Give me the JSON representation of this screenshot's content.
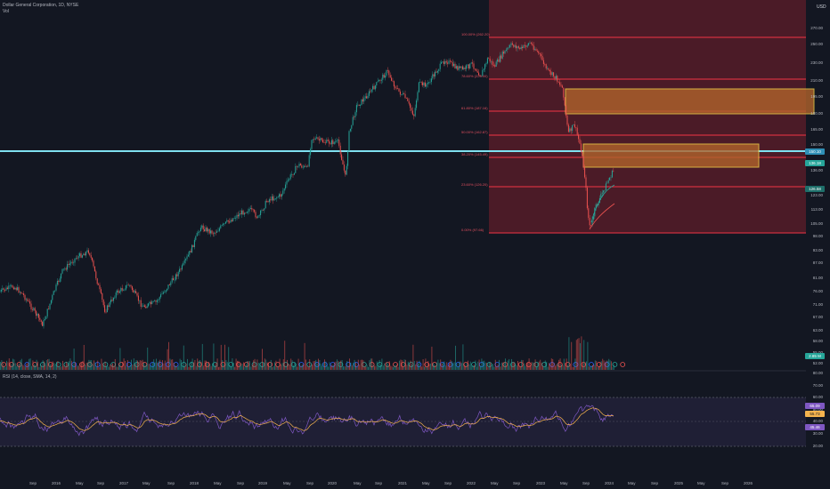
{
  "header": {
    "title": "Dollar General Corporation, 1D, NYSE",
    "sub": "Vol",
    "currency": "USD"
  },
  "price_axis": [
    "270.00",
    "250.00",
    "230.00",
    "210.00",
    "195.00",
    "180.00",
    "165.00",
    "150.00",
    "136.00",
    "123.00",
    "113.00",
    "105.00",
    "98.00",
    "93.00",
    "87.00",
    "81.00",
    "76.00",
    "71.00",
    "67.00",
    "63.00",
    "58.00",
    "55.00",
    "52.00"
  ],
  "price_badges": {
    "cyan": "150.10",
    "current": "136.18",
    "green": "126.58",
    "volume": "2.85 M"
  },
  "fib_levels": [
    {
      "label": "100.00% (262.20)"
    },
    {
      "label": "78.60% (229.00)"
    },
    {
      "label": "61.80% (187.16)"
    },
    {
      "label": "50.00% (162.87)"
    },
    {
      "label": "38.20% (145.49)"
    },
    {
      "label": "23.60% (126.20)"
    },
    {
      "label": "0.00% (97.66)"
    }
  ],
  "rsi": {
    "title": "RSI (14, close, SMA, 14, 2)",
    "axis": [
      "80.00",
      "70.00",
      "60.00",
      "50.00",
      "40.00",
      "30.00",
      "20.00"
    ],
    "badges": [
      "65.09",
      "55.73",
      "45.46"
    ]
  },
  "time_axis": [
    "Sep",
    "2016",
    "May",
    "Sep",
    "2017",
    "May",
    "Sep",
    "2018",
    "May",
    "Sep",
    "2019",
    "May",
    "Sep",
    "2020",
    "May",
    "Sep",
    "2021",
    "May",
    "Sep",
    "2022",
    "May",
    "Sep",
    "2023",
    "May",
    "Sep",
    "2024",
    "May",
    "Sep",
    "2025",
    "May",
    "Sep",
    "2026"
  ],
  "colors": {
    "background": "#131722",
    "bull": "#26a69a",
    "bear": "#ef5350",
    "fib": "#f23645",
    "zone_fill": "#b0632b",
    "zone_border": "#f7d64a",
    "cyan_line": "#7fe0f0",
    "rsi": "#7e57c2",
    "rsi_ma": "#f5b34e"
  }
}
